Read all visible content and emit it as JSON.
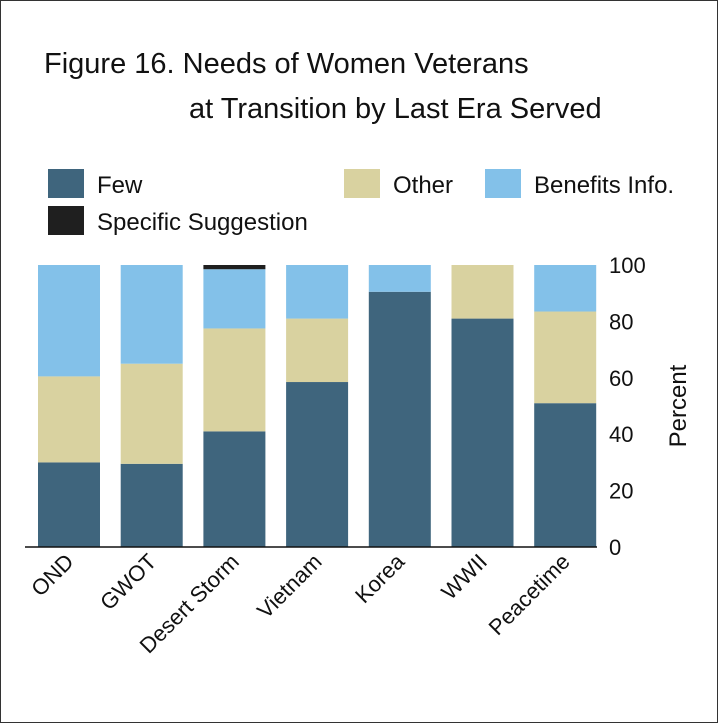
{
  "chart_data": {
    "type": "bar",
    "stacked": true,
    "title_lines": [
      "Figure 16. Needs of Women Veterans",
      "at Transition by Last Era Served"
    ],
    "ylabel": "Percent",
    "xlabel": "",
    "ylim": [
      0,
      100
    ],
    "yticks": [
      "0",
      "20",
      "40",
      "60",
      "80",
      "100"
    ],
    "y_axis_side": "right",
    "grid": false,
    "legend_placement": "top",
    "categories": [
      "OND",
      "GWOT",
      "Desert Storm",
      "Vietnam",
      "Korea",
      "WWII",
      "Peacetime"
    ],
    "series": [
      {
        "name": "Few",
        "color": "#3f657d",
        "values": [
          30,
          29.5,
          41,
          58.5,
          90.5,
          81,
          51
        ]
      },
      {
        "name": "Other",
        "color": "#d9d2a0",
        "values": [
          30.5,
          35.5,
          36.5,
          22.5,
          0,
          19,
          32.5
        ]
      },
      {
        "name": "Benefits Info.",
        "color": "#83c1e9",
        "values": [
          39.5,
          35,
          21,
          19,
          9.5,
          0,
          16.5
        ]
      },
      {
        "name": "Specific Suggestion",
        "color": "#1f1f1f",
        "values": [
          0,
          0,
          1.5,
          0,
          0,
          0,
          0
        ]
      }
    ]
  }
}
